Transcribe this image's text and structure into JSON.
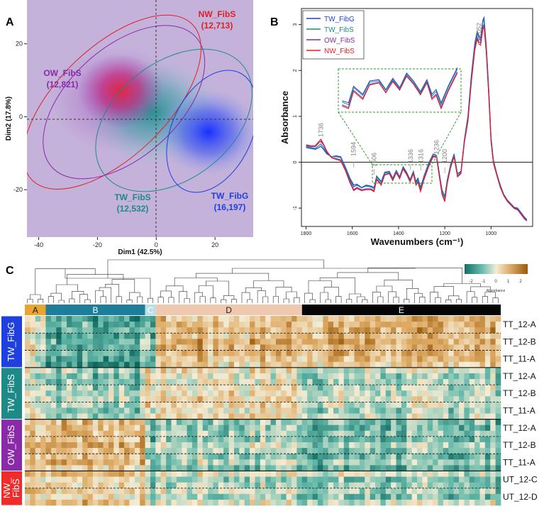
{
  "panels": {
    "a": "A",
    "b": "B",
    "c": "C"
  },
  "colors": {
    "TW_FibG": "#1f3fe0",
    "TW_FibS": "#1d8a87",
    "OW_FibS": "#8a2aa8",
    "NW_FibS": "#e0202a",
    "pca_bg": "#c4b2da",
    "hm_low": "#0f6f64",
    "hm_mid": "#f4ecd4",
    "hm_high": "#b36a10"
  },
  "chart_data": [
    {
      "type": "scatter",
      "panel": "A",
      "xlabel": "Dim1 (42.5%)",
      "ylabel": "Dim2 (17.8%)",
      "xlim": [
        -44,
        33
      ],
      "ylim": [
        -33,
        32
      ],
      "xticks": [
        -40,
        -20,
        0,
        20
      ],
      "yticks": [
        -20,
        0,
        20
      ],
      "groups": [
        {
          "name": "NW_FibS",
          "n": "(12,713)",
          "center": [
            -14,
            8
          ],
          "ellipse": {
            "cx": -15,
            "cy": 4,
            "rx": 38,
            "ry": 15,
            "angle": 44
          },
          "color": "#e0202a"
        },
        {
          "name": "OW_FibS",
          "n": "(12,821)",
          "center": [
            -18,
            4
          ],
          "ellipse": {
            "cx": -11,
            "cy": 4,
            "rx": 33,
            "ry": 15,
            "angle": 42
          },
          "color": "#8a2aa8"
        },
        {
          "name": "TW_FibS",
          "n": "(12,532)",
          "center": [
            -3,
            3
          ],
          "ellipse": {
            "cx": 6,
            "cy": -1,
            "rx": 30,
            "ry": 16,
            "angle": 38
          },
          "color": "#1d8a87"
        },
        {
          "name": "TW_FibG",
          "n": "(16,197)",
          "center": [
            18,
            -4
          ],
          "ellipse": {
            "cx": 19,
            "cy": -4,
            "rx": 22,
            "ry": 11,
            "angle": 65
          },
          "color": "#1f3fe0"
        }
      ]
    },
    {
      "type": "line",
      "panel": "B",
      "xlabel": "Wavenumbers (cm⁻¹)",
      "ylabel": "Absorbance",
      "xlim": [
        1820,
        820
      ],
      "ylim": [
        -1.4,
        3.35
      ],
      "xticks": [
        1800,
        1600,
        1400,
        1200,
        1000
      ],
      "yticks": [
        -1,
        0,
        1,
        2,
        3
      ],
      "annotations": [
        "1736",
        "1594",
        "1506",
        "1336",
        "1316",
        "1236",
        "1200",
        "1052"
      ],
      "x": [
        1800,
        1780,
        1760,
        1745,
        1736,
        1725,
        1710,
        1690,
        1670,
        1650,
        1630,
        1610,
        1594,
        1580,
        1560,
        1540,
        1520,
        1506,
        1495,
        1475,
        1460,
        1440,
        1425,
        1410,
        1395,
        1380,
        1365,
        1350,
        1336,
        1325,
        1316,
        1305,
        1290,
        1270,
        1250,
        1236,
        1225,
        1212,
        1200,
        1190,
        1175,
        1160,
        1145,
        1130,
        1115,
        1100,
        1085,
        1070,
        1060,
        1052,
        1045,
        1035,
        1030,
        1020,
        1010,
        1000,
        990,
        975,
        960,
        945,
        930,
        915,
        900,
        885,
        870,
        855,
        845
      ],
      "series": [
        {
          "name": "TW_FibG",
          "color": "#1f3fe0",
          "values": [
            0.32,
            0.3,
            0.28,
            0.32,
            0.35,
            0.28,
            0.18,
            0.12,
            0.14,
            0.12,
            -0.1,
            -0.35,
            -0.5,
            -0.48,
            -0.55,
            -0.5,
            -0.52,
            -0.55,
            -0.3,
            -0.42,
            -0.22,
            -0.2,
            -0.35,
            -0.18,
            -0.32,
            -0.1,
            -0.22,
            -0.38,
            -0.2,
            -0.42,
            -0.35,
            -0.55,
            -0.3,
            -0.02,
            0.18,
            0.15,
            -0.2,
            -0.6,
            -0.75,
            -0.4,
            -0.05,
            0.18,
            -0.25,
            -0.2,
            0.5,
            1.0,
            1.9,
            2.6,
            2.85,
            2.75,
            2.7,
            3.1,
            3.15,
            2.5,
            1.6,
            0.55,
            0.05,
            -0.25,
            -0.5,
            -0.7,
            -0.82,
            -0.9,
            -0.98,
            -1.0,
            -1.1,
            -1.2,
            -1.25
          ]
        },
        {
          "name": "TW_FibS",
          "color": "#1d8a87",
          "values": [
            0.34,
            0.32,
            0.3,
            0.36,
            0.4,
            0.32,
            0.2,
            0.12,
            0.12,
            0.1,
            -0.12,
            -0.38,
            -0.54,
            -0.5,
            -0.56,
            -0.52,
            -0.54,
            -0.58,
            -0.32,
            -0.44,
            -0.24,
            -0.22,
            -0.36,
            -0.2,
            -0.33,
            -0.12,
            -0.24,
            -0.4,
            -0.22,
            -0.45,
            -0.38,
            -0.58,
            -0.32,
            -0.04,
            0.17,
            0.14,
            -0.22,
            -0.62,
            -0.78,
            -0.42,
            -0.06,
            0.16,
            -0.26,
            -0.22,
            0.48,
            0.95,
            1.85,
            2.55,
            2.8,
            2.7,
            2.65,
            3.05,
            3.1,
            2.45,
            1.55,
            0.52,
            0.03,
            -0.26,
            -0.52,
            -0.71,
            -0.83,
            -0.91,
            -0.99,
            -1.02,
            -1.12,
            -1.22,
            -1.26
          ]
        },
        {
          "name": "OW_FibS",
          "color": "#8a2aa8",
          "values": [
            0.36,
            0.34,
            0.34,
            0.42,
            0.46,
            0.38,
            0.22,
            0.1,
            0.08,
            0.05,
            -0.16,
            -0.42,
            -0.6,
            -0.55,
            -0.6,
            -0.58,
            -0.58,
            -0.62,
            -0.36,
            -0.48,
            -0.27,
            -0.24,
            -0.39,
            -0.22,
            -0.35,
            -0.14,
            -0.26,
            -0.42,
            -0.24,
            -0.48,
            -0.42,
            -0.62,
            -0.36,
            -0.08,
            0.14,
            0.12,
            -0.25,
            -0.68,
            -0.84,
            -0.46,
            -0.1,
            0.13,
            -0.3,
            -0.24,
            0.45,
            0.9,
            1.8,
            2.5,
            2.72,
            2.62,
            2.6,
            2.95,
            3.0,
            2.4,
            1.5,
            0.48,
            0.0,
            -0.28,
            -0.54,
            -0.72,
            -0.84,
            -0.92,
            -1.0,
            -1.03,
            -1.13,
            -1.23,
            -1.27
          ]
        },
        {
          "name": "NW_FibS",
          "color": "#e0202a",
          "values": [
            0.38,
            0.36,
            0.36,
            0.45,
            0.5,
            0.4,
            0.24,
            0.1,
            0.06,
            0.03,
            -0.18,
            -0.45,
            -0.62,
            -0.57,
            -0.62,
            -0.6,
            -0.6,
            -0.64,
            -0.38,
            -0.5,
            -0.28,
            -0.25,
            -0.4,
            -0.23,
            -0.36,
            -0.15,
            -0.27,
            -0.43,
            -0.25,
            -0.5,
            -0.44,
            -0.64,
            -0.38,
            -0.1,
            0.12,
            0.1,
            -0.27,
            -0.7,
            -0.86,
            -0.48,
            -0.12,
            0.12,
            -0.32,
            -0.25,
            0.44,
            0.88,
            1.75,
            2.45,
            2.68,
            2.58,
            2.55,
            2.9,
            2.95,
            2.35,
            1.45,
            0.45,
            -0.02,
            -0.29,
            -0.55,
            -0.73,
            -0.85,
            -0.93,
            -1.01,
            -1.04,
            -1.14,
            -1.24,
            -1.28
          ]
        }
      ]
    },
    {
      "type": "heatmap",
      "panel": "C",
      "colorbar": {
        "title": "Absorbance",
        "ticks": [
          "-2",
          "-1",
          "0",
          "1",
          "2"
        ]
      },
      "clusters": [
        {
          "label": "A",
          "columns": 4,
          "color": "#e8a530",
          "text": "#1a1a1a"
        },
        {
          "label": "B",
          "columns": 19,
          "color": "#1e7d9a",
          "text": "#ffffff"
        },
        {
          "label": "C",
          "columns": 2,
          "color": "#b8e0e8",
          "text": "#ffffff"
        },
        {
          "label": "D",
          "columns": 28,
          "color": "#eec9b0",
          "text": "#1a1a1a"
        },
        {
          "label": "E",
          "columns": 38,
          "color": "#050505",
          "text": "#ffffff"
        }
      ],
      "groups": [
        {
          "label": "TW_FibG",
          "color": "#1f3fe0",
          "samples": [
            "TT_12-A",
            "TT_12-B",
            "TT_11-A"
          ]
        },
        {
          "label": "TW_FibS",
          "color": "#1d8a87",
          "samples": [
            "TT_12-A",
            "TT_12-B",
            "TT_11-A"
          ]
        },
        {
          "label": "OW_FibS",
          "color": "#8a2aa8",
          "samples": [
            "TT_12-A",
            "TT_12-B",
            "TT_11-A"
          ]
        },
        {
          "label": "NW_\nFibS",
          "color": "#ef2b2b",
          "samples": [
            "UT_12-C",
            "UT_12-D"
          ]
        }
      ]
    }
  ]
}
